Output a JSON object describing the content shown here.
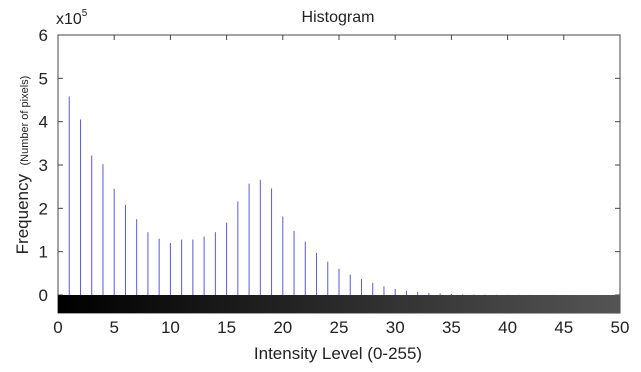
{
  "chart_data": {
    "type": "bar",
    "title": "Histogram",
    "xlabel": "Intensity Level (0-255)",
    "ylabel": "Frequency",
    "ylabel_note": "(Number of pixels)",
    "y_multiplier": {
      "base": "x10",
      "exponent": "5"
    },
    "xlim": [
      0,
      50
    ],
    "ylim": [
      0,
      6
    ],
    "x_ticks": [
      0,
      5,
      10,
      15,
      20,
      25,
      30,
      35,
      40,
      45,
      50
    ],
    "y_ticks": [
      0,
      1,
      2,
      3,
      4,
      5,
      6
    ],
    "grid": false,
    "legend": "none",
    "bar_color": "#5a5ad8",
    "colorbar": {
      "from": "#000000",
      "to": "#555555",
      "position": "below x-axis"
    },
    "x": [
      1,
      2,
      3,
      4,
      5,
      6,
      7,
      8,
      9,
      10,
      11,
      12,
      13,
      14,
      15,
      16,
      17,
      18,
      19,
      20,
      21,
      22,
      23,
      24,
      25,
      26,
      27,
      28,
      29,
      30,
      31,
      32,
      33,
      34,
      35,
      36,
      37,
      38,
      39,
      40,
      41,
      42,
      43,
      44,
      45,
      46,
      47,
      48,
      49
    ],
    "values": [
      4.58,
      4.05,
      3.22,
      3.02,
      2.45,
      2.08,
      1.75,
      1.45,
      1.3,
      1.2,
      1.28,
      1.28,
      1.35,
      1.45,
      1.67,
      2.16,
      2.57,
      2.66,
      2.46,
      1.81,
      1.48,
      1.23,
      0.97,
      0.77,
      0.61,
      0.47,
      0.37,
      0.28,
      0.2,
      0.14,
      0.1,
      0.07,
      0.05,
      0.035,
      0.025,
      0.018,
      0.013,
      0.009,
      0.006,
      0.005,
      0.004,
      0.003,
      0.002,
      0.002,
      0.001,
      0.001,
      0.001,
      0.001,
      0.001
    ]
  }
}
